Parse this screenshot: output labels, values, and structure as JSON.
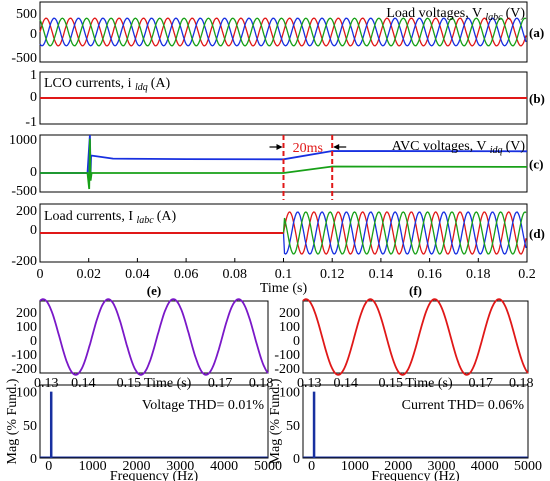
{
  "chart_data": [
    {
      "id": "load-voltages",
      "type": "line",
      "title": "Load voltages, V",
      "title_sub": "labc",
      "title_unit": "(V)",
      "panel_label": "(a)",
      "xlim": [
        0,
        0.2
      ],
      "ylim": [
        -500,
        500
      ],
      "yticks": [
        "500",
        "0",
        "-500"
      ],
      "waveform": "three-phase sine",
      "amplitude": 230,
      "frequency_hz": 100,
      "series_colors": [
        "#e01818",
        "#1830e0",
        "#18a018"
      ]
    },
    {
      "id": "lco-currents",
      "type": "line",
      "title": "LCO currents, i",
      "title_sub": "ldq",
      "title_unit": "(A)",
      "panel_label": "(b)",
      "xlim": [
        0,
        0.2
      ],
      "ylim": [
        -1,
        1
      ],
      "yticks": [
        "1",
        "0",
        "-1"
      ],
      "values": [
        {
          "x": 0,
          "y": 0
        },
        {
          "x": 0.2,
          "y": 0
        }
      ],
      "series_colors": [
        "#e01818"
      ]
    },
    {
      "id": "avc-voltages",
      "type": "line",
      "title": "AVC voltages, V",
      "title_sub": "idq",
      "title_unit": "(V)",
      "panel_label": "(c)",
      "annotation": "20ms",
      "annotation_span": [
        0.1,
        0.12
      ],
      "xlim": [
        0,
        0.2
      ],
      "ylim": [
        -500,
        1000
      ],
      "yticks": [
        "1000",
        "0",
        "-500"
      ],
      "series": [
        {
          "color": "#1830e0",
          "points": [
            [
              0,
              0
            ],
            [
              0.0195,
              0
            ],
            [
              0.0205,
              1000
            ],
            [
              0.0208,
              0
            ],
            [
              0.021,
              460
            ],
            [
              0.03,
              380
            ],
            [
              0.045,
              370
            ],
            [
              0.06,
              365
            ],
            [
              0.1,
              360
            ],
            [
              0.12,
              580
            ],
            [
              0.2,
              570
            ]
          ]
        },
        {
          "color": "#18a018",
          "points": [
            [
              0,
              0
            ],
            [
              0.0195,
              0
            ],
            [
              0.0202,
              -420
            ],
            [
              0.0205,
              900
            ],
            [
              0.0208,
              -200
            ],
            [
              0.0212,
              0
            ],
            [
              0.1,
              0
            ],
            [
              0.12,
              170
            ],
            [
              0.2,
              160
            ]
          ]
        }
      ]
    },
    {
      "id": "load-currents",
      "type": "line",
      "title": "Load currents, I",
      "title_sub": "labc",
      "title_unit": "(A)",
      "panel_label": "(d)",
      "xlim": [
        0,
        0.2
      ],
      "ylim": [
        -200,
        200
      ],
      "yticks": [
        "200",
        "0",
        "-200"
      ],
      "xlabel": "Time (s)",
      "xticks": [
        "0",
        "0.02",
        "0.04",
        "0.06",
        "0.08",
        "0.1",
        "0.12",
        "0.14",
        "0.16",
        "0.18",
        "0.2"
      ],
      "step_time": 0.1,
      "amplitude_after_step": 145,
      "frequency_hz": 100,
      "series_colors": [
        "#e01818",
        "#1830e0",
        "#18a018"
      ]
    },
    {
      "id": "voltage-zoom",
      "type": "line",
      "panel_label": "(e)",
      "xlim": [
        0.13,
        0.19
      ],
      "ylim": [
        -200,
        200
      ],
      "yticks": [
        "200",
        "100",
        "0",
        "-100",
        "-200"
      ],
      "xticks": [
        "0.13",
        "0.14",
        "0.15",
        "Time (s)",
        "0.17",
        "0.18"
      ],
      "amplitude": 210,
      "frequency_hz": 63,
      "series_colors": [
        "#7a18c8"
      ]
    },
    {
      "id": "current-zoom",
      "type": "line",
      "panel_label": "(f)",
      "xlim": [
        0.13,
        0.19
      ],
      "ylim": [
        -200,
        200
      ],
      "yticks": [
        "200",
        "100",
        "0",
        "-100",
        "-200"
      ],
      "xticks": [
        "0.13",
        "0.14",
        "0.15",
        "Time (s)",
        "0.17",
        "0.18"
      ],
      "amplitude": 210,
      "frequency_hz": 63,
      "series_colors": [
        "#e01818"
      ]
    },
    {
      "id": "voltage-spectrum",
      "type": "bar",
      "annotation": "Voltage THD= 0.01%",
      "ylabel": "Mag (% Fund.)",
      "xlabel": "Frequency (Hz)",
      "xlim": [
        -200,
        5000
      ],
      "ylim": [
        0,
        110
      ],
      "yticks": [
        "100",
        "50",
        "0"
      ],
      "xticks": [
        "0",
        "1000",
        "2000",
        "3000",
        "4000",
        "5000"
      ],
      "bars": [
        {
          "x": 50,
          "value": 100
        }
      ],
      "series_colors": [
        "#1830a0"
      ]
    },
    {
      "id": "current-spectrum",
      "type": "bar",
      "annotation": "Current THD= 0.06%",
      "ylabel": "Mag (% Fund.)",
      "xlabel": "Frequency (Hz)",
      "xlim": [
        -200,
        5000
      ],
      "ylim": [
        0,
        110
      ],
      "yticks": [
        "100",
        "50",
        "0"
      ],
      "xticks": [
        "0",
        "1000",
        "2000",
        "3000",
        "4000",
        "5000"
      ],
      "bars": [
        {
          "x": 50,
          "value": 100
        }
      ],
      "series_colors": [
        "#1830a0"
      ]
    }
  ]
}
